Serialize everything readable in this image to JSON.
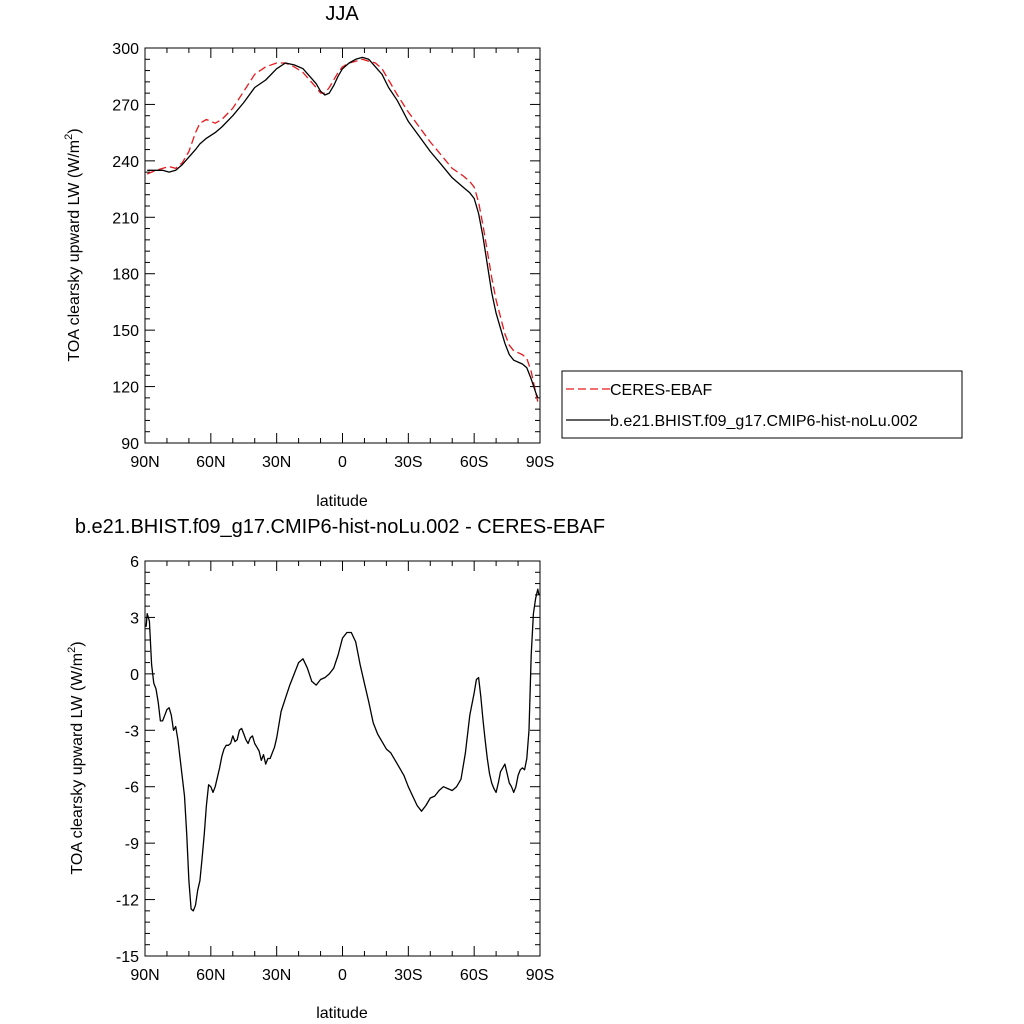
{
  "chart_data": [
    {
      "type": "line",
      "title": "JJA",
      "xlabel": "latitude",
      "ylabel": "TOA clearsky upward LW (W/m",
      "ylabel_sup": "2",
      "ylabel_end": ")",
      "xlim": [
        90,
        -90
      ],
      "ylim": [
        90,
        300
      ],
      "xticks": [
        90,
        60,
        30,
        0,
        -30,
        -60,
        -90
      ],
      "xtick_labels": [
        "90N",
        "60N",
        "30N",
        "0",
        "30S",
        "60S",
        "90S"
      ],
      "yticks": [
        90,
        120,
        150,
        180,
        210,
        240,
        270,
        300
      ],
      "ytick_labels": [
        "90",
        "120",
        "150",
        "180",
        "210",
        "240",
        "270",
        "300"
      ],
      "grid": false,
      "legend": "right",
      "series": [
        {
          "name": "CERES-EBAF",
          "color": "#e8191c",
          "dash": "dashed",
          "x": [
            89,
            87,
            85,
            82,
            79,
            76,
            73,
            70,
            67,
            65,
            62,
            58,
            55,
            50,
            45,
            40,
            35,
            30,
            26,
            22,
            18,
            15,
            12,
            10,
            8,
            6,
            4,
            2,
            0,
            -3,
            -6,
            -9,
            -12,
            -15,
            -18,
            -21,
            -25,
            -30,
            -35,
            -40,
            -45,
            -50,
            -55,
            -58,
            -60,
            -62,
            -64,
            -66,
            -68,
            -70,
            -72,
            -74,
            -76,
            -78,
            -80,
            -82,
            -84,
            -86,
            -88,
            -89
          ],
          "y": [
            233,
            234,
            235,
            236,
            237,
            236,
            239,
            245,
            255,
            260,
            262,
            260,
            262,
            268,
            277,
            286,
            290,
            292,
            292,
            290,
            287,
            283,
            279,
            276,
            276,
            279,
            283,
            287,
            290,
            292,
            293,
            294,
            293,
            292,
            289,
            283,
            275,
            266,
            258,
            250,
            243,
            236,
            232,
            229,
            226,
            218,
            206,
            192,
            178,
            166,
            157,
            148,
            142,
            139,
            138,
            137,
            135,
            128,
            117,
            112
          ]
        },
        {
          "name": "b.e21.BHIST.f09_g17.CMIP6-hist-noLu.002",
          "color": "#000000",
          "dash": "solid",
          "x": [
            89,
            87,
            85,
            82,
            79,
            76,
            73,
            70,
            67,
            65,
            62,
            58,
            55,
            50,
            45,
            40,
            35,
            30,
            26,
            22,
            18,
            15,
            12,
            10,
            8,
            6,
            4,
            2,
            0,
            -3,
            -6,
            -9,
            -12,
            -15,
            -18,
            -21,
            -25,
            -30,
            -35,
            -40,
            -45,
            -50,
            -55,
            -58,
            -60,
            -62,
            -64,
            -66,
            -68,
            -70,
            -72,
            -74,
            -76,
            -78,
            -80,
            -82,
            -84,
            -86,
            -88,
            -89
          ],
          "y": [
            235,
            235,
            235,
            235,
            234,
            235,
            238,
            242,
            246,
            249,
            252,
            255,
            258,
            264,
            271,
            279,
            283,
            289,
            292,
            291,
            289,
            285,
            281,
            277,
            275,
            276,
            280,
            285,
            289,
            292,
            294,
            295,
            294,
            290,
            286,
            279,
            272,
            261,
            253,
            245,
            238,
            231,
            226,
            223,
            220,
            212,
            200,
            185,
            170,
            159,
            151,
            143,
            137,
            134,
            133,
            132,
            130,
            124,
            117,
            114
          ]
        }
      ]
    },
    {
      "type": "line",
      "title": "b.e21.BHIST.f09_g17.CMIP6-hist-noLu.002 - CERES-EBAF",
      "xlabel": "latitude",
      "ylabel": "TOA clearsky upward LW (W/m",
      "ylabel_sup": "2",
      "ylabel_end": ")",
      "xlim": [
        90,
        -90
      ],
      "ylim": [
        -15,
        6
      ],
      "xticks": [
        90,
        60,
        30,
        0,
        -30,
        -60,
        -90
      ],
      "xtick_labels": [
        "90N",
        "60N",
        "30N",
        "0",
        "30S",
        "60S",
        "90S"
      ],
      "yticks": [
        -15,
        -12,
        -9,
        -6,
        -3,
        0,
        3,
        6
      ],
      "ytick_labels": [
        "-15",
        "-12",
        "-9",
        "-6",
        "-3",
        "0",
        "3",
        "6"
      ],
      "grid": false,
      "series": [
        {
          "color": "#000000",
          "dash": "solid",
          "x": [
            89.5,
            89,
            88,
            87,
            86,
            85,
            84,
            83,
            82,
            81,
            80,
            79,
            78,
            77,
            76,
            75,
            74,
            73,
            72,
            71,
            70,
            69,
            68,
            67,
            66,
            65,
            64,
            63,
            62,
            61,
            60,
            59,
            58,
            57,
            56,
            55,
            54,
            53,
            52,
            51,
            50,
            49,
            48,
            47,
            46,
            45,
            44,
            43,
            42,
            41,
            40,
            39,
            38,
            37,
            36,
            35,
            34,
            33,
            32,
            31,
            30,
            28,
            26,
            24,
            22,
            20,
            18,
            16,
            14,
            12,
            10,
            8,
            6,
            4,
            2,
            0,
            -2,
            -4,
            -6,
            -8,
            -10,
            -12,
            -14,
            -16,
            -18,
            -20,
            -22,
            -24,
            -26,
            -28,
            -30,
            -32,
            -34,
            -36,
            -38,
            -40,
            -42,
            -44,
            -46,
            -48,
            -50,
            -52,
            -54,
            -56,
            -58,
            -60,
            -61,
            -62,
            -63,
            -64,
            -65,
            -66,
            -67,
            -68,
            -69,
            -70,
            -71,
            -72,
            -73,
            -74,
            -75,
            -76,
            -77,
            -78,
            -79,
            -80,
            -81,
            -82,
            -83,
            -84,
            -85,
            -86,
            -87,
            -88,
            -89,
            -89.5
          ],
          "y": [
            2.5,
            3.2,
            2.8,
            0.5,
            -0.5,
            -0.8,
            -1.5,
            -2.5,
            -2.5,
            -2.2,
            -1.9,
            -1.8,
            -2.2,
            -3.0,
            -2.8,
            -3.5,
            -4.5,
            -5.5,
            -6.5,
            -8.5,
            -11.0,
            -12.5,
            -12.6,
            -12.3,
            -11.5,
            -11.0,
            -9.8,
            -8.5,
            -7.0,
            -5.9,
            -6.0,
            -6.3,
            -6.0,
            -5.5,
            -5.0,
            -4.4,
            -4.0,
            -3.8,
            -3.8,
            -3.7,
            -3.3,
            -3.6,
            -3.5,
            -3.0,
            -2.9,
            -3.2,
            -3.5,
            -3.7,
            -3.4,
            -3.3,
            -3.7,
            -3.9,
            -4.1,
            -4.6,
            -4.3,
            -4.8,
            -4.5,
            -4.5,
            -4.2,
            -3.9,
            -3.4,
            -2.0,
            -1.3,
            -0.6,
            0.0,
            0.6,
            0.8,
            0.3,
            -0.4,
            -0.6,
            -0.3,
            -0.2,
            0.0,
            0.3,
            1.0,
            1.9,
            2.2,
            2.2,
            1.7,
            0.5,
            -0.5,
            -1.5,
            -2.6,
            -3.2,
            -3.6,
            -4.0,
            -4.2,
            -4.6,
            -5.0,
            -5.4,
            -6.0,
            -6.5,
            -7.0,
            -7.3,
            -7.0,
            -6.6,
            -6.5,
            -6.2,
            -6.0,
            -6.1,
            -6.2,
            -6.0,
            -5.6,
            -4.2,
            -2.2,
            -1.0,
            -0.3,
            -0.2,
            -1.2,
            -2.4,
            -3.5,
            -4.5,
            -5.3,
            -5.8,
            -6.1,
            -6.3,
            -5.8,
            -5.2,
            -5.0,
            -4.8,
            -5.3,
            -5.8,
            -6.0,
            -6.3,
            -6.0,
            -5.4,
            -5.1,
            -5.0,
            -5.1,
            -4.5,
            -3.0,
            1.0,
            3.2,
            4.0,
            4.5,
            4.2
          ]
        }
      ]
    }
  ]
}
